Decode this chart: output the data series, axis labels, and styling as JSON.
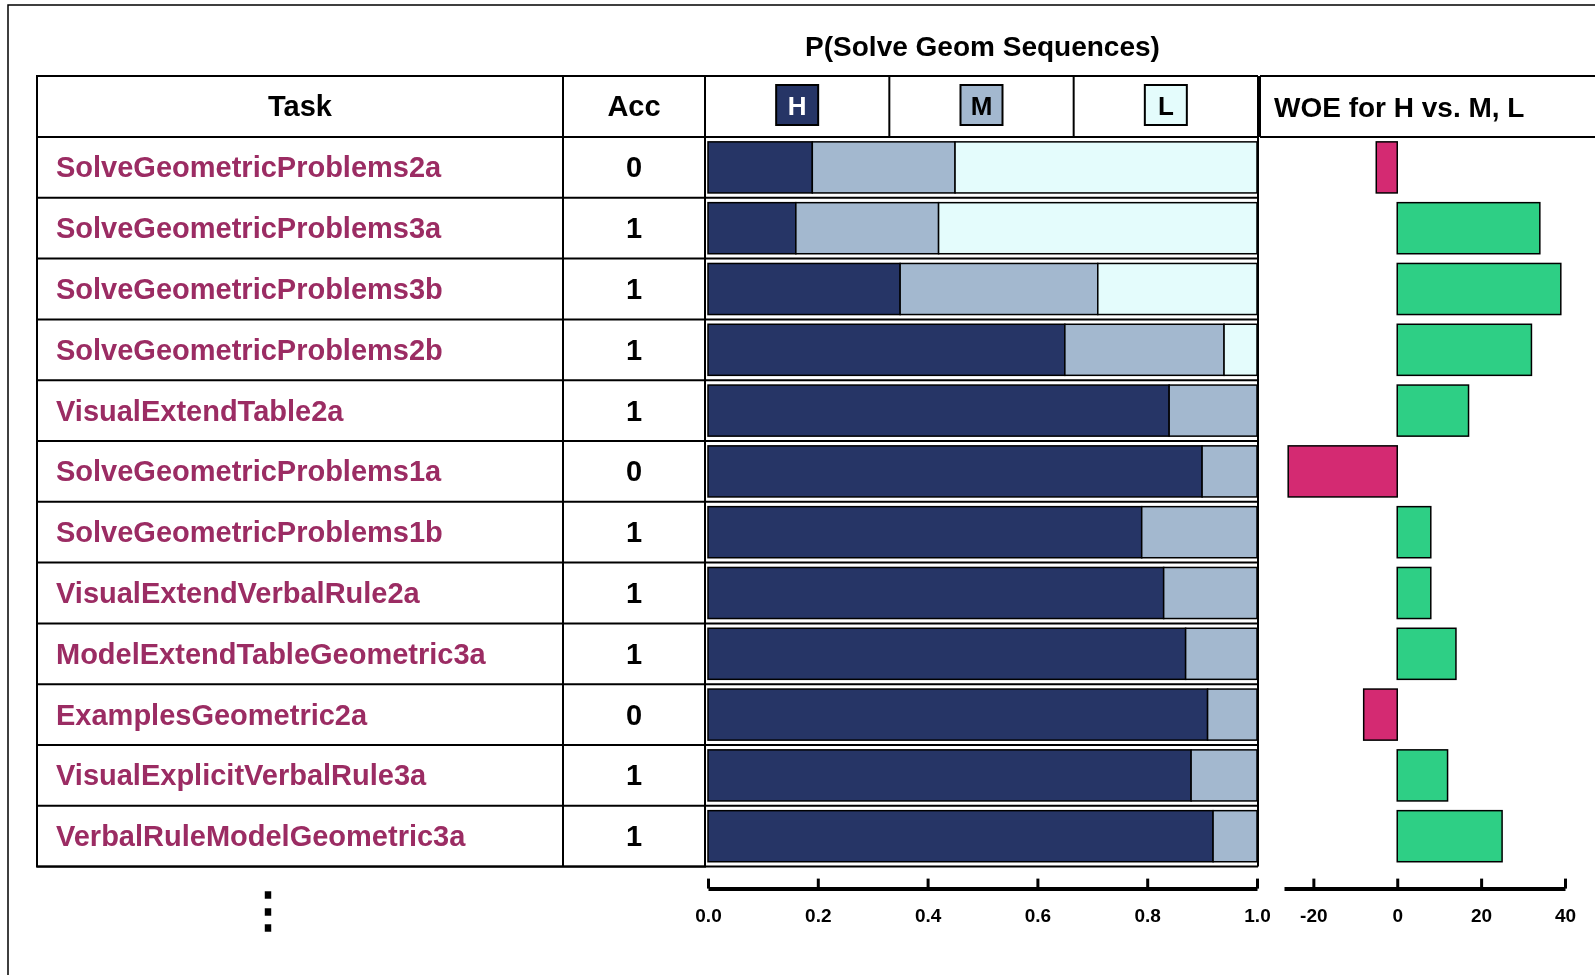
{
  "chart_data": [
    {
      "type": "other",
      "annotations": [
        "Task",
        "Acc",
        "⋮"
      ],
      "data_labels": true,
      "categories": [
        "SolveGeometricProblems2a",
        "SolveGeometricProblems3a",
        "SolveGeometricProblems3b",
        "SolveGeometricProblems2b",
        "VisualExtendTable2a",
        "SolveGeometricProblems1a",
        "SolveGeometricProblems1b",
        "VisualExtendVerbalRule2a",
        "ModelExtendTableGeometric3a",
        "ExamplesGeometric2a",
        "VisualExplicitVerbalRule3a",
        "VerbalRuleModelGeometric3a"
      ],
      "values": [
        0,
        1,
        1,
        1,
        1,
        0,
        1,
        1,
        1,
        0,
        1,
        1
      ]
    },
    {
      "type": "bar",
      "orientation": "horizontal",
      "stacked": true,
      "title": "P(Solve Geom Sequences)",
      "legend": "top",
      "tick_labels": "x",
      "xlim": [
        0,
        1
      ],
      "xticks": [
        {
          "value": 0,
          "label": "0.0"
        },
        {
          "value": 0.2,
          "label": "0.2"
        },
        {
          "value": 0.4,
          "label": "0.4"
        },
        {
          "value": 0.6,
          "label": "0.6"
        },
        {
          "value": 0.8,
          "label": "0.8"
        },
        {
          "value": 1,
          "label": "1.0"
        }
      ],
      "series": [
        {
          "name": "H",
          "color": "#263566",
          "values": [
            0.19,
            0.16,
            0.35,
            0.65,
            0.84,
            0.9,
            0.79,
            0.83,
            0.87,
            0.91,
            0.88,
            0.92
          ]
        },
        {
          "name": "M",
          "color": "#a3b8cf",
          "values": [
            0.26,
            0.26,
            0.36,
            0.29,
            0.16,
            0.1,
            0.21,
            0.17,
            0.13,
            0.09,
            0.12,
            0.08
          ]
        },
        {
          "name": "L",
          "color": "#e4fcfc",
          "values": [
            0.55,
            0.58,
            0.29,
            0.06,
            0,
            0,
            0,
            0,
            0,
            0,
            0,
            0
          ]
        }
      ]
    },
    {
      "type": "bar",
      "orientation": "horizontal",
      "title": "WOE for H vs. M, L",
      "tick_labels": "x",
      "xlim": [
        -27,
        40
      ],
      "xticks": [
        -20,
        0,
        20,
        40
      ],
      "values": [
        -5,
        34,
        39,
        32,
        17,
        -26,
        8,
        8,
        14,
        -8,
        12,
        25
      ],
      "colors": [
        "#d42a72",
        "#2ecf85",
        "#2ecf85",
        "#2ecf85",
        "#2ecf85",
        "#d42a72",
        "#2ecf85",
        "#2ecf85",
        "#2ecf85",
        "#d42a72",
        "#2ecf85",
        "#2ecf85"
      ]
    }
  ]
}
